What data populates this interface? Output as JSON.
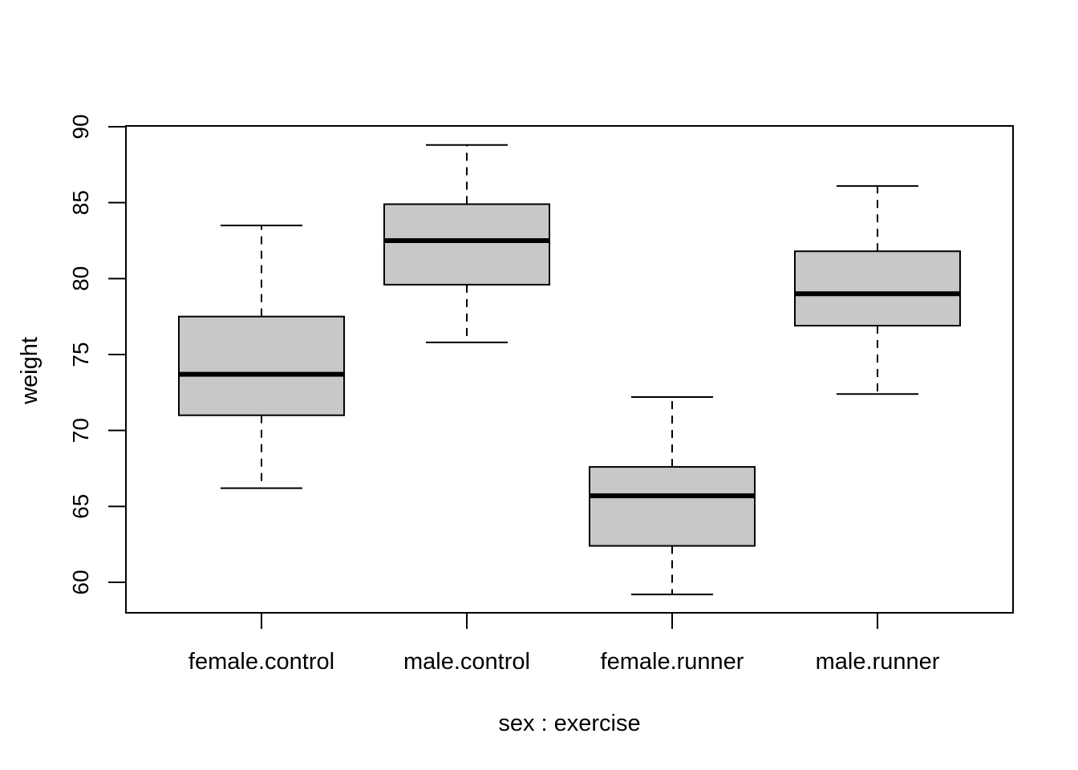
{
  "chart_data": {
    "type": "box",
    "title": "",
    "xlabel": "sex : exercise",
    "ylabel": "weight",
    "ylim": [
      58,
      90
    ],
    "yticks": [
      60,
      65,
      70,
      75,
      80,
      85,
      90
    ],
    "categories": [
      "female.control",
      "male.control",
      "female.runner",
      "male.runner"
    ],
    "boxes": [
      {
        "category": "female.control",
        "whisker_low": 66.2,
        "q1": 71.0,
        "median": 73.7,
        "q3": 77.5,
        "whisker_high": 83.5
      },
      {
        "category": "male.control",
        "whisker_low": 75.8,
        "q1": 79.6,
        "median": 82.5,
        "q3": 84.9,
        "whisker_high": 88.8
      },
      {
        "category": "female.runner",
        "whisker_low": 59.2,
        "q1": 62.4,
        "median": 65.7,
        "q3": 67.6,
        "whisker_high": 72.2
      },
      {
        "category": "male.runner",
        "whisker_low": 72.4,
        "q1": 76.9,
        "median": 79.0,
        "q3": 81.8,
        "whisker_high": 86.1
      }
    ],
    "grid": false,
    "colors": {
      "box_fill": "#c8c8c8",
      "stroke": "#000000"
    }
  }
}
